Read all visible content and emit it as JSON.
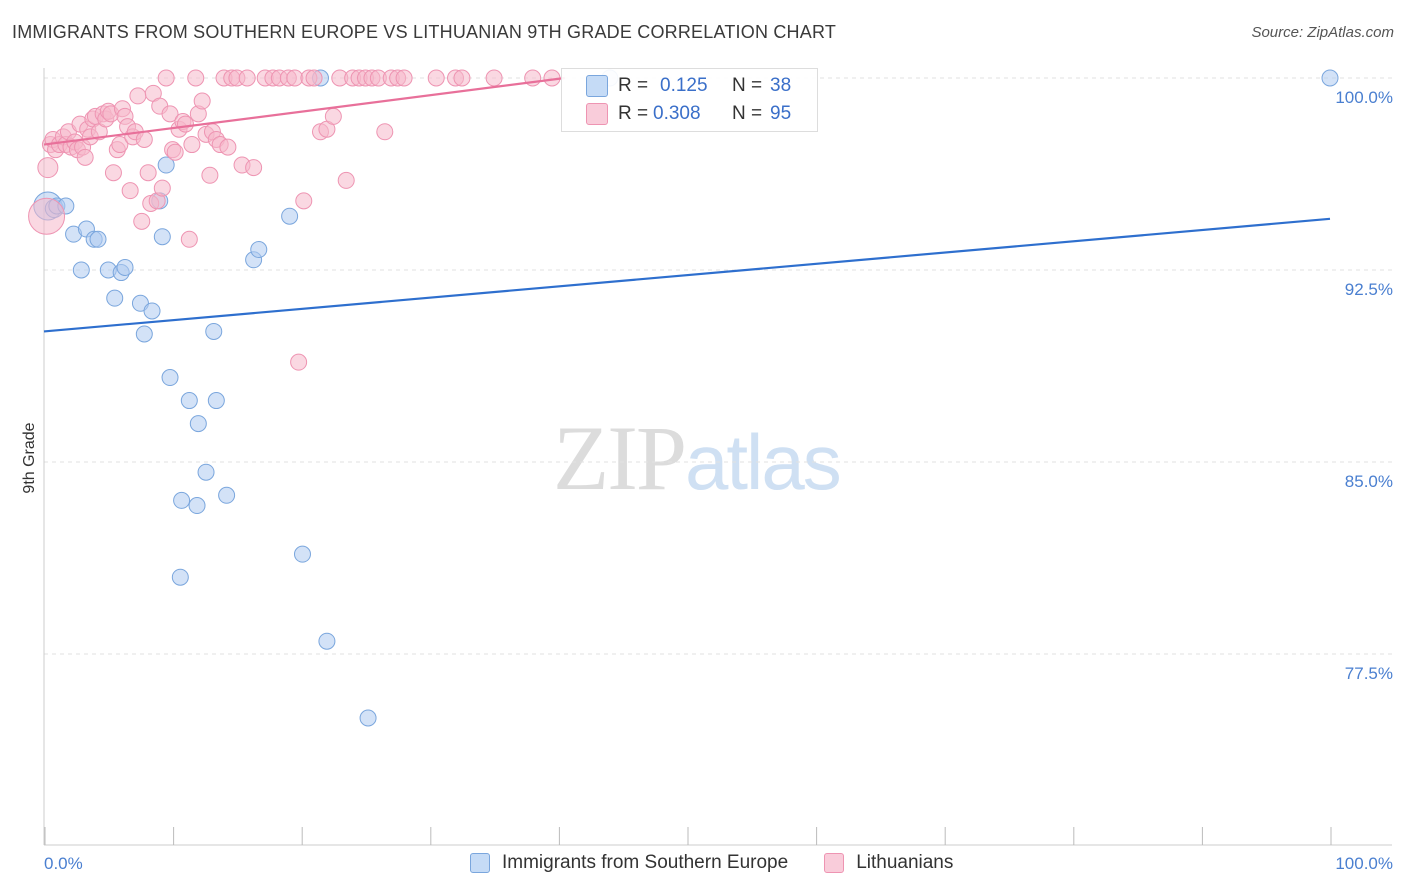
{
  "title": "IMMIGRANTS FROM SOUTHERN EUROPE VS LITHUANIAN 9TH GRADE CORRELATION CHART",
  "source": "Source: ZipAtlas.com",
  "watermark": {
    "zip": "ZIP",
    "atlas": "atlas"
  },
  "legend": {
    "series1": "Immigrants from Southern Europe",
    "series2": "Lithuanians"
  },
  "stats": {
    "s1": {
      "r_label": "R =",
      "r": "0.125",
      "n_label": "N =",
      "n": "38"
    },
    "s2": {
      "r_label": "R =",
      "r": "0.308",
      "n_label": "N =",
      "n": "95"
    }
  },
  "colors": {
    "blue_fill": "#aecbf0",
    "blue_stroke": "#7aa6dd",
    "blue_line": "#2e6fce",
    "pink_fill": "#f6b8cb",
    "pink_stroke": "#ee94b2",
    "pink_line": "#e8709a",
    "tick_label": "#4a7fd0",
    "grid": "#e2e2e2"
  },
  "chart_data": {
    "type": "scatter",
    "title": "IMMIGRANTS FROM SOUTHERN EUROPE VS LITHUANIAN 9TH GRADE CORRELATION CHART",
    "xlabel": "",
    "ylabel": "9th Grade",
    "xlim": [
      0,
      100
    ],
    "ylim": [
      70.0,
      100.8
    ],
    "x_tick_labels": [
      {
        "value": 0,
        "label": "0.0%"
      },
      {
        "value": 100,
        "label": "100.0%"
      }
    ],
    "x_minor_ticks": [
      0,
      10,
      20,
      30,
      40,
      50,
      60,
      70,
      80,
      90,
      100
    ],
    "y_ticks": [
      {
        "value": 100.0,
        "label": "100.0%"
      },
      {
        "value": 92.5,
        "label": "92.5%"
      },
      {
        "value": 85.0,
        "label": "85.0%"
      },
      {
        "value": 77.5,
        "label": "77.5%"
      }
    ],
    "grid": true,
    "legend_position": "bottom-center",
    "series": [
      {
        "name": "Immigrants from Southern Europe",
        "color": "#aecbf0",
        "trend": {
          "x": [
            0,
            100
          ],
          "y": [
            90.1,
            94.5
          ]
        },
        "points": [
          [
            0.3,
            95.0,
            14
          ],
          [
            0.8,
            94.9,
            9
          ],
          [
            1.0,
            95.0,
            8
          ],
          [
            1.7,
            95.0,
            8
          ],
          [
            2.3,
            93.9,
            8
          ],
          [
            3.3,
            94.1,
            8
          ],
          [
            3.9,
            93.7,
            8
          ],
          [
            4.2,
            93.7,
            8
          ],
          [
            2.9,
            92.5,
            8
          ],
          [
            5.0,
            92.5,
            8
          ],
          [
            6.0,
            92.4,
            8
          ],
          [
            6.3,
            92.6,
            8
          ],
          [
            5.5,
            91.4,
            8
          ],
          [
            7.5,
            91.2,
            8
          ],
          [
            8.4,
            90.9,
            8
          ],
          [
            7.8,
            90.0,
            8
          ],
          [
            9.0,
            95.2,
            8
          ],
          [
            9.2,
            93.8,
            8
          ],
          [
            9.5,
            96.6,
            8
          ],
          [
            9.8,
            88.3,
            8
          ],
          [
            11.3,
            87.4,
            8
          ],
          [
            12.0,
            86.5,
            8
          ],
          [
            13.4,
            87.4,
            8
          ],
          [
            12.6,
            84.6,
            8
          ],
          [
            13.2,
            90.1,
            8
          ],
          [
            14.2,
            83.7,
            8
          ],
          [
            10.7,
            83.5,
            8
          ],
          [
            11.9,
            83.3,
            8
          ],
          [
            16.3,
            92.9,
            8
          ],
          [
            16.7,
            93.3,
            8
          ],
          [
            19.1,
            94.6,
            8
          ],
          [
            20.1,
            81.4,
            8
          ],
          [
            10.6,
            80.5,
            8
          ],
          [
            21.5,
            100.0,
            8
          ],
          [
            22.0,
            78.0,
            8
          ],
          [
            25.2,
            75.0,
            8
          ],
          [
            44.0,
            100.0,
            8
          ],
          [
            100.0,
            100.0,
            8
          ]
        ]
      },
      {
        "name": "Lithuanians",
        "color": "#f6b8cb",
        "trend": {
          "x": [
            0,
            40.5
          ],
          "y": [
            97.4,
            100.0
          ]
        },
        "points": [
          [
            0.2,
            94.6,
            18
          ],
          [
            0.3,
            96.5,
            10
          ],
          [
            0.5,
            97.4,
            8
          ],
          [
            0.7,
            97.6,
            8
          ],
          [
            0.9,
            97.2,
            8
          ],
          [
            1.2,
            97.4,
            8
          ],
          [
            1.5,
            97.7,
            8
          ],
          [
            1.7,
            97.4,
            8
          ],
          [
            1.9,
            97.9,
            8
          ],
          [
            2.1,
            97.3,
            8
          ],
          [
            2.4,
            97.5,
            8
          ],
          [
            2.6,
            97.2,
            8
          ],
          [
            2.8,
            98.2,
            8
          ],
          [
            3.0,
            97.3,
            8
          ],
          [
            3.2,
            96.9,
            8
          ],
          [
            3.4,
            98.0,
            8
          ],
          [
            3.6,
            97.7,
            8
          ],
          [
            3.8,
            98.4,
            8
          ],
          [
            4.0,
            98.5,
            8
          ],
          [
            4.3,
            97.9,
            8
          ],
          [
            4.6,
            98.6,
            8
          ],
          [
            4.8,
            98.4,
            8
          ],
          [
            5.0,
            98.7,
            8
          ],
          [
            5.2,
            98.6,
            8
          ],
          [
            5.4,
            96.3,
            8
          ],
          [
            5.7,
            97.2,
            8
          ],
          [
            5.9,
            97.4,
            8
          ],
          [
            6.1,
            98.8,
            8
          ],
          [
            6.3,
            98.5,
            8
          ],
          [
            6.5,
            98.1,
            8
          ],
          [
            6.7,
            95.6,
            8
          ],
          [
            6.9,
            97.7,
            8
          ],
          [
            7.1,
            97.9,
            8
          ],
          [
            7.3,
            99.3,
            8
          ],
          [
            7.6,
            94.4,
            8
          ],
          [
            7.8,
            97.6,
            8
          ],
          [
            8.1,
            96.3,
            8
          ],
          [
            8.3,
            95.1,
            8
          ],
          [
            8.5,
            99.4,
            8
          ],
          [
            8.8,
            95.2,
            8
          ],
          [
            9.0,
            98.9,
            8
          ],
          [
            9.2,
            95.7,
            8
          ],
          [
            9.5,
            100.0,
            8
          ],
          [
            9.8,
            98.6,
            8
          ],
          [
            10.0,
            97.2,
            8
          ],
          [
            10.2,
            97.1,
            8
          ],
          [
            10.5,
            98.0,
            8
          ],
          [
            10.8,
            98.3,
            8
          ],
          [
            11.0,
            98.2,
            8
          ],
          [
            11.3,
            93.7,
            8
          ],
          [
            11.5,
            97.4,
            8
          ],
          [
            11.8,
            100.0,
            8
          ],
          [
            12.0,
            98.6,
            8
          ],
          [
            12.3,
            99.1,
            8
          ],
          [
            12.6,
            97.8,
            8
          ],
          [
            12.9,
            96.2,
            8
          ],
          [
            13.1,
            97.9,
            8
          ],
          [
            13.4,
            97.6,
            8
          ],
          [
            13.7,
            97.4,
            8
          ],
          [
            14.0,
            100.0,
            8
          ],
          [
            14.3,
            97.3,
            8
          ],
          [
            14.6,
            100.0,
            8
          ],
          [
            15.0,
            100.0,
            8
          ],
          [
            15.4,
            96.6,
            8
          ],
          [
            15.8,
            100.0,
            8
          ],
          [
            16.3,
            96.5,
            8
          ],
          [
            17.2,
            100.0,
            8
          ],
          [
            17.8,
            100.0,
            8
          ],
          [
            18.3,
            100.0,
            8
          ],
          [
            19.0,
            100.0,
            8
          ],
          [
            19.5,
            100.0,
            8
          ],
          [
            20.2,
            95.2,
            8
          ],
          [
            20.6,
            100.0,
            8
          ],
          [
            21.0,
            100.0,
            8
          ],
          [
            21.5,
            97.9,
            8
          ],
          [
            22.0,
            98.0,
            8
          ],
          [
            22.5,
            98.5,
            8
          ],
          [
            23.0,
            100.0,
            8
          ],
          [
            23.5,
            96.0,
            8
          ],
          [
            24.0,
            100.0,
            8
          ],
          [
            24.5,
            100.0,
            8
          ],
          [
            25.0,
            100.0,
            8
          ],
          [
            25.5,
            100.0,
            8
          ],
          [
            26.0,
            100.0,
            8
          ],
          [
            26.5,
            97.9,
            8
          ],
          [
            27.0,
            100.0,
            8
          ],
          [
            27.5,
            100.0,
            8
          ],
          [
            28.0,
            100.0,
            8
          ],
          [
            30.5,
            100.0,
            8
          ],
          [
            32.0,
            100.0,
            8
          ],
          [
            32.5,
            100.0,
            8
          ],
          [
            35.0,
            100.0,
            8
          ],
          [
            38.0,
            100.0,
            8
          ],
          [
            39.5,
            100.0,
            8
          ],
          [
            19.8,
            88.9,
            8
          ]
        ]
      }
    ]
  }
}
